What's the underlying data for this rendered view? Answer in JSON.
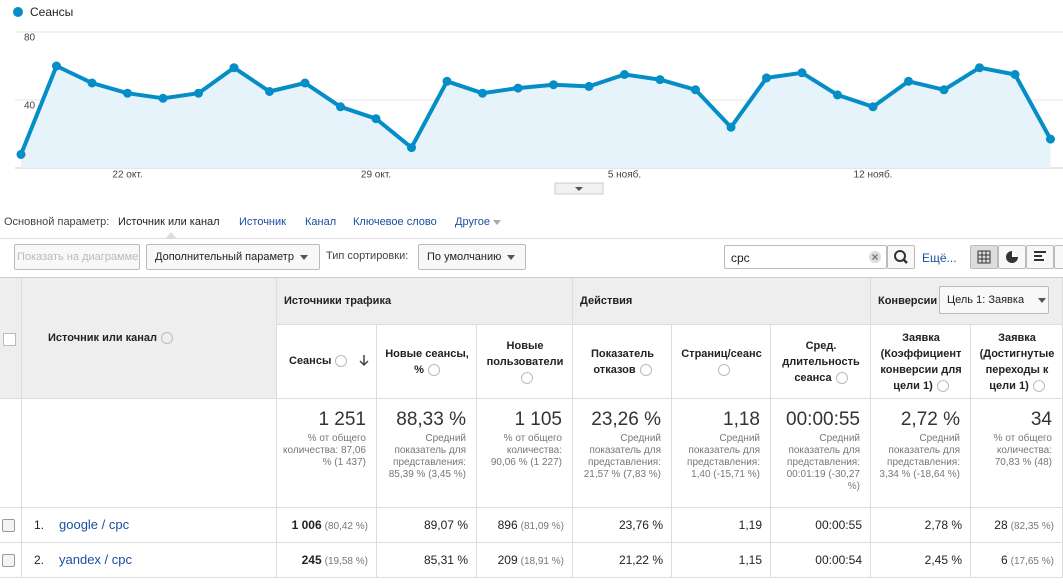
{
  "chart_data": {
    "type": "line",
    "series": [
      {
        "name": "Сеансы",
        "color": "#058dc7",
        "values": [
          8,
          60,
          50,
          44,
          41,
          44,
          59,
          45,
          50,
          36,
          29,
          12,
          51,
          44,
          47,
          49,
          48,
          55,
          52,
          46,
          24,
          53,
          56,
          43,
          36,
          51,
          46,
          59,
          55,
          17
        ]
      }
    ],
    "categories": [
      null,
      null,
      null,
      "22 окт.",
      null,
      null,
      null,
      null,
      null,
      null,
      "29 окт.",
      null,
      null,
      null,
      null,
      null,
      null,
      "5 нояб.",
      null,
      null,
      null,
      null,
      null,
      null,
      "12 нояб.",
      null,
      null,
      null,
      null,
      null
    ],
    "ylim": [
      0,
      80
    ],
    "yticks": [
      40,
      80
    ],
    "grid": true
  },
  "dimension_bar": {
    "label": "Основной параметр:",
    "active": "Источник или канал",
    "options": [
      "Источник",
      "Канал",
      "Ключевое слово",
      "Другое"
    ]
  },
  "toolbar": {
    "plot_button": "Показать на диаграмме",
    "secondary": "Дополнительный параметр",
    "sort_label": "Тип сортировки:",
    "sort_value": "По умолчанию",
    "search": "cpc",
    "more": "Ещё..."
  },
  "table": {
    "dimension_header": "Источник или канал",
    "groups": [
      "Источники трафика",
      "Действия",
      "Конверсии"
    ],
    "goal_select": "Цель 1: Заявка",
    "columns": [
      "Сеансы",
      "Новые сеансы, %",
      "Новые пользователи",
      "Показатель отказов",
      "Страниц/сеанс",
      "Сред. длительность сеанса",
      "Заявка (Коэффициент конверсии для цели 1)",
      "Заявка (Достигнутые переходы к цели 1)"
    ],
    "totals": [
      {
        "value": "1 251",
        "note": "% от общего количества: 87,06 % (1 437)"
      },
      {
        "value": "88,33 %",
        "note": "Средний показатель для представления: 85,39 % (3,45 %)"
      },
      {
        "value": "1 105",
        "note": "% от общего количества: 90,06 % (1 227)"
      },
      {
        "value": "23,26 %",
        "note": "Средний показатель для представления: 21,57 % (7,83 %)"
      },
      {
        "value": "1,18",
        "note": "Средний показатель для представления: 1,40 (-15,71 %)"
      },
      {
        "value": "00:00:55",
        "note": "Средний показатель для представления: 00:01:19 (-30,27 %)"
      },
      {
        "value": "2,72 %",
        "note": "Средний показатель для представления: 3,34 % (-18,64 %)"
      },
      {
        "value": "34",
        "note": "% от общего количества: 70,83 % (48)"
      }
    ],
    "rows": [
      {
        "index": "1.",
        "name": "google / cpc",
        "cells": [
          {
            "value": "1 006",
            "share": "(80,42 %)"
          },
          {
            "value": "89,07 %"
          },
          {
            "value": "896",
            "share": "(81,09 %)"
          },
          {
            "value": "23,76 %"
          },
          {
            "value": "1,19"
          },
          {
            "value": "00:00:55"
          },
          {
            "value": "2,78 %"
          },
          {
            "value": "28",
            "share": "(82,35 %)"
          }
        ]
      },
      {
        "index": "2.",
        "name": "yandex / cpc",
        "cells": [
          {
            "value": "245",
            "share": "(19,58 %)"
          },
          {
            "value": "85,31 %"
          },
          {
            "value": "209",
            "share": "(18,91 %)"
          },
          {
            "value": "21,22 %"
          },
          {
            "value": "1,15"
          },
          {
            "value": "00:00:54"
          },
          {
            "value": "2,45 %"
          },
          {
            "value": "6",
            "share": "(17,65 %)"
          }
        ]
      }
    ]
  }
}
